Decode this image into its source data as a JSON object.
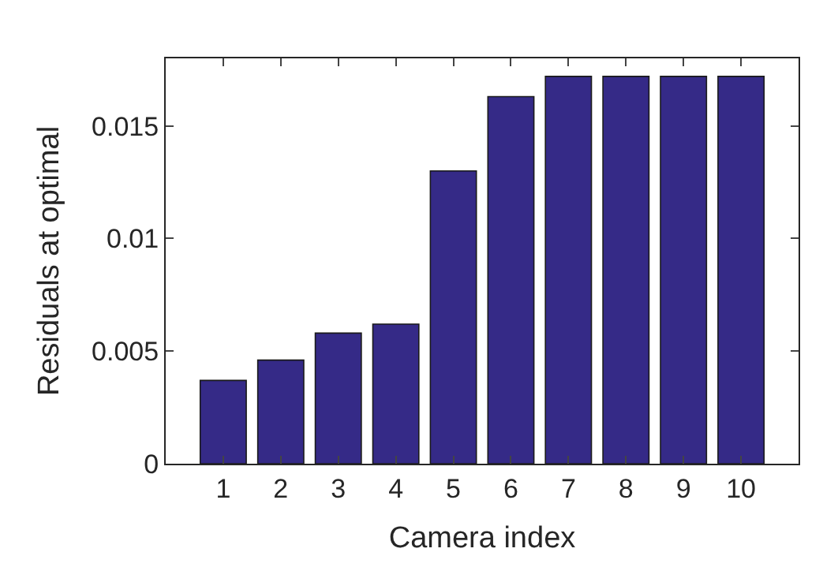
{
  "chart_data": {
    "type": "bar",
    "xlabel": "Camera index",
    "ylabel": "Residuals at optimal",
    "categories": [
      "1",
      "2",
      "3",
      "4",
      "5",
      "6",
      "7",
      "8",
      "9",
      "10"
    ],
    "values": [
      0.0037,
      0.0046,
      0.0058,
      0.0062,
      0.013,
      0.0163,
      0.0172,
      0.0172,
      0.0172,
      0.0172
    ],
    "color": "#352a87",
    "ylim": [
      0,
      0.018
    ],
    "yticks": [
      0,
      0.005,
      0.01,
      0.015
    ]
  }
}
